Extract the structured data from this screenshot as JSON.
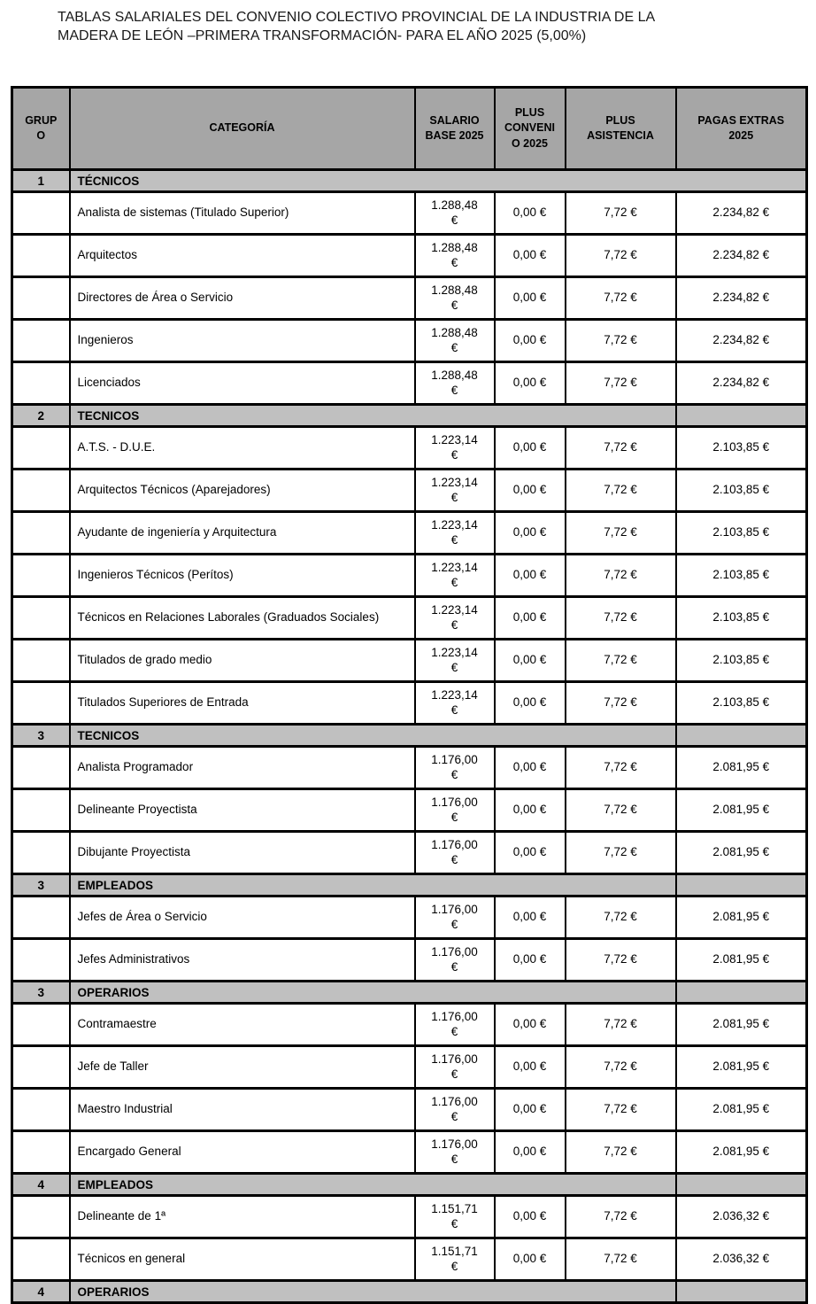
{
  "title": "TABLAS SALARIALES DEL CONVENIO COLECTIVO PROVINCIAL DE LA INDUSTRIA DE LA\nMADERA DE LEÓN –PRIMERA TRANSFORMACIÓN- PARA EL AÑO 2025 (5,00%)",
  "table": {
    "colors": {
      "header_bg": "#a6a6a6",
      "band_bg": "#c0c0c0",
      "border": "#000000",
      "page_bg": "#ffffff",
      "text": "#000000"
    },
    "columns": [
      {
        "key": "grupo",
        "label": "GRUP\nO"
      },
      {
        "key": "categoria",
        "label": "CATEGORÍA"
      },
      {
        "key": "salario",
        "label": "SALARIO\nBASE 2025"
      },
      {
        "key": "plus_convenio",
        "label": "PLUS\nCONVENI\nO 2025"
      },
      {
        "key": "plus_asistencia",
        "label": "PLUS\nASISTENCIA"
      },
      {
        "key": "pagas_extras",
        "label": "PAGAS EXTRAS\n2025"
      }
    ],
    "sections": [
      {
        "grupo": "1",
        "label": "TÉCNICOS",
        "band_full_width": true,
        "rows": [
          {
            "categoria": "Analista de sistemas (Titulado Superior)",
            "salario": "1.288,48\n€",
            "plus_convenio": "0,00 €",
            "plus_asistencia": "7,72 €",
            "pagas_extras": "2.234,82 €"
          },
          {
            "categoria": "Arquitectos",
            "salario": "1.288,48\n€",
            "plus_convenio": "0,00 €",
            "plus_asistencia": "7,72 €",
            "pagas_extras": "2.234,82 €"
          },
          {
            "categoria": "Directores de Área o Servicio",
            "salario": "1.288,48\n€",
            "plus_convenio": "0,00 €",
            "plus_asistencia": "7,72 €",
            "pagas_extras": "2.234,82 €"
          },
          {
            "categoria": "Ingenieros",
            "salario": "1.288,48\n€",
            "plus_convenio": "0,00 €",
            "plus_asistencia": "7,72 €",
            "pagas_extras": "2.234,82 €"
          },
          {
            "categoria": "Licenciados",
            "salario": "1.288,48\n€",
            "plus_convenio": "0,00 €",
            "plus_asistencia": "7,72 €",
            "pagas_extras": "2.234,82 €"
          }
        ]
      },
      {
        "grupo": "2",
        "label": "TECNICOS",
        "band_full_width": false,
        "rows": [
          {
            "categoria": "A.T.S. - D.U.E.",
            "salario": "1.223,14\n€",
            "plus_convenio": "0,00 €",
            "plus_asistencia": "7,72 €",
            "pagas_extras": "2.103,85 €"
          },
          {
            "categoria": "Arquitectos Técnicos (Aparejadores)",
            "salario": "1.223,14\n€",
            "plus_convenio": "0,00 €",
            "plus_asistencia": "7,72 €",
            "pagas_extras": "2.103,85 €"
          },
          {
            "categoria": "Ayudante de ingeniería y Arquitectura",
            "salario": "1.223,14\n€",
            "plus_convenio": "0,00 €",
            "plus_asistencia": "7,72 €",
            "pagas_extras": "2.103,85 €"
          },
          {
            "categoria": "Ingenieros Técnicos (Perítos)",
            "salario": "1.223,14\n€",
            "plus_convenio": "0,00 €",
            "plus_asistencia": "7,72 €",
            "pagas_extras": "2.103,85 €"
          },
          {
            "categoria": "Técnicos en Relaciones Laborales (Graduados Sociales)",
            "salario": "1.223,14\n€",
            "plus_convenio": "0,00 €",
            "plus_asistencia": "7,72 €",
            "pagas_extras": "2.103,85 €"
          },
          {
            "categoria": "Titulados de grado medio",
            "salario": "1.223,14\n€",
            "plus_convenio": "0,00 €",
            "plus_asistencia": "7,72 €",
            "pagas_extras": "2.103,85 €"
          },
          {
            "categoria": "Titulados Superiores de Entrada",
            "salario": "1.223,14\n€",
            "plus_convenio": "0,00 €",
            "plus_asistencia": "7,72 €",
            "pagas_extras": "2.103,85 €"
          }
        ]
      },
      {
        "grupo": "3",
        "label": "TECNICOS",
        "band_full_width": false,
        "rows": [
          {
            "categoria": "Analista Programador",
            "salario": "1.176,00\n€",
            "plus_convenio": "0,00 €",
            "plus_asistencia": "7,72 €",
            "pagas_extras": "2.081,95 €"
          },
          {
            "categoria": "Delineante Proyectista",
            "salario": "1.176,00\n€",
            "plus_convenio": "0,00 €",
            "plus_asistencia": "7,72 €",
            "pagas_extras": "2.081,95 €"
          },
          {
            "categoria": "Dibujante Proyectista",
            "salario": "1.176,00\n€",
            "plus_convenio": "0,00 €",
            "plus_asistencia": "7,72 €",
            "pagas_extras": "2.081,95 €"
          }
        ]
      },
      {
        "grupo": "3",
        "label": "EMPLEADOS",
        "band_full_width": false,
        "rows": [
          {
            "categoria": "Jefes de Área o Servicio",
            "salario": "1.176,00\n€",
            "plus_convenio": "0,00 €",
            "plus_asistencia": "7,72 €",
            "pagas_extras": "2.081,95 €"
          },
          {
            "categoria": "Jefes Administrativos",
            "salario": "1.176,00\n€",
            "plus_convenio": "0,00 €",
            "plus_asistencia": "7,72 €",
            "pagas_extras": "2.081,95 €"
          }
        ]
      },
      {
        "grupo": "3",
        "label": "OPERARIOS",
        "band_full_width": false,
        "rows": [
          {
            "categoria": "Contramaestre",
            "salario": "1.176,00\n€",
            "plus_convenio": "0,00 €",
            "plus_asistencia": "7,72 €",
            "pagas_extras": "2.081,95 €"
          },
          {
            "categoria": "Jefe de Taller",
            "salario": "1.176,00\n€",
            "plus_convenio": "0,00 €",
            "plus_asistencia": "7,72 €",
            "pagas_extras": "2.081,95 €"
          },
          {
            "categoria": "Maestro Industrial",
            "salario": "1.176,00\n€",
            "plus_convenio": "0,00 €",
            "plus_asistencia": "7,72 €",
            "pagas_extras": "2.081,95 €"
          },
          {
            "categoria": "Encargado General",
            "salario": "1.176,00\n€",
            "plus_convenio": "0,00 €",
            "plus_asistencia": "7,72 €",
            "pagas_extras": "2.081,95 €"
          }
        ]
      },
      {
        "grupo": "4",
        "label": "EMPLEADOS",
        "band_full_width": false,
        "rows": [
          {
            "categoria": "Delineante de 1ª",
            "salario": "1.151,71\n€",
            "plus_convenio": "0,00 €",
            "plus_asistencia": "7,72 €",
            "pagas_extras": "2.036,32 €"
          },
          {
            "categoria": "Técnicos en general",
            "salario": "1.151,71\n€",
            "plus_convenio": "0,00 €",
            "plus_asistencia": "7,72 €",
            "pagas_extras": "2.036,32 €"
          }
        ]
      },
      {
        "grupo": "4",
        "label": "OPERARIOS",
        "band_full_width": false,
        "rows": []
      }
    ]
  }
}
